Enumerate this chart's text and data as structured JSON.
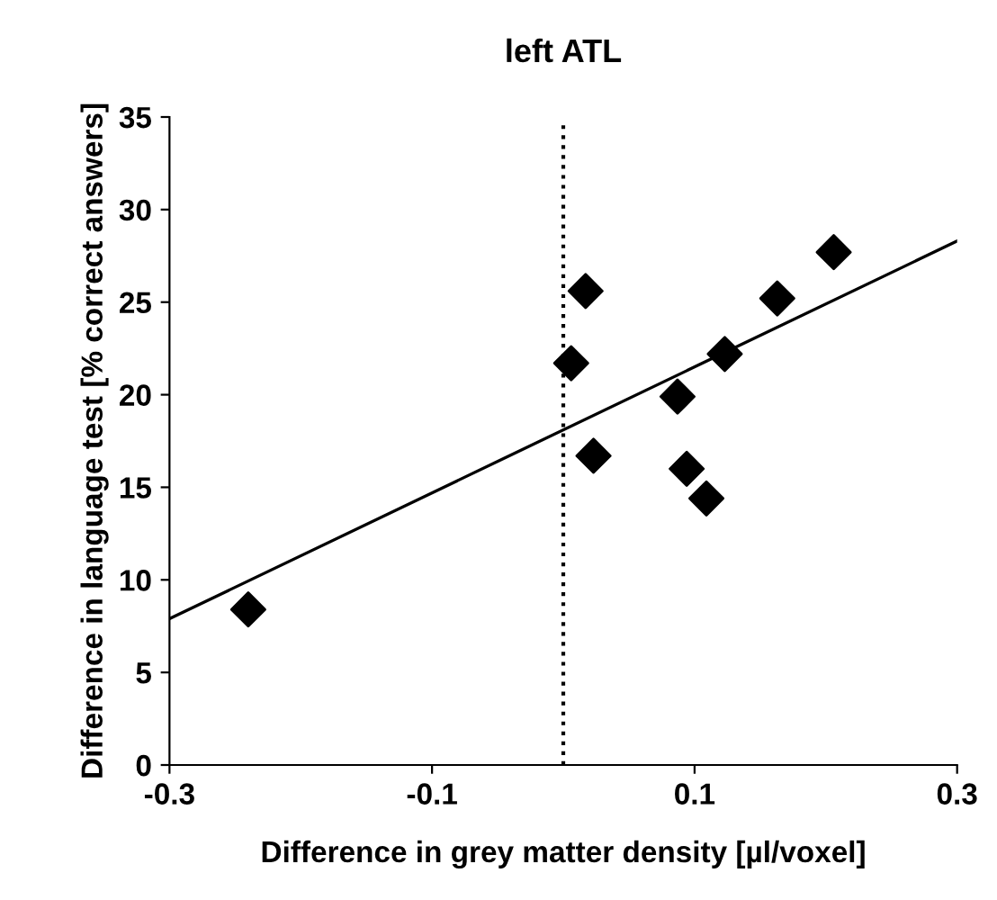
{
  "chart_data": {
    "type": "scatter",
    "title": "left ATL",
    "xlabel": "Difference in grey matter density [µl/voxel]",
    "ylabel": "Difference in language test [% correct answers]",
    "xlim": [
      -0.3,
      0.3
    ],
    "xticks": [
      -0.3,
      -0.1,
      0.1,
      0.3
    ],
    "ylim": [
      0,
      35
    ],
    "yticks": [
      0,
      5,
      10,
      15,
      20,
      25,
      30,
      35
    ],
    "grid": false,
    "legend": false,
    "marker": "diamond",
    "series": [
      {
        "color": "#000000",
        "x": [
          -0.24,
          0.006,
          0.017,
          0.023,
          0.087,
          0.094,
          0.109,
          0.123,
          0.163,
          0.206
        ],
        "values": [
          8.4,
          21.7,
          25.6,
          16.7,
          19.9,
          16.0,
          14.4,
          22.2,
          25.2,
          27.7
        ]
      },
      {
        "type": "line",
        "color": "#000000",
        "x": [
          -0.3,
          0.3
        ],
        "values": [
          7.9,
          28.3
        ],
        "marker": "none",
        "line_style": "solid"
      }
    ],
    "ref_lines": [
      {
        "axis": "x",
        "value": 0,
        "line_style": "dotted",
        "color": "#000000"
      }
    ]
  }
}
